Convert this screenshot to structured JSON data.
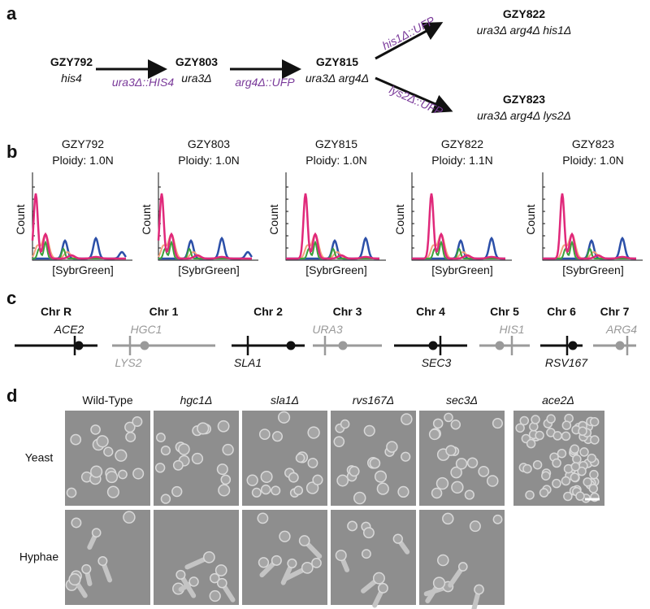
{
  "panels": {
    "a": {
      "label": "a",
      "strains": [
        {
          "name": "GZY792",
          "genotype": "his4"
        },
        {
          "name": "GZY803",
          "genotype": "ura3Δ"
        },
        {
          "name": "GZY815",
          "genotype": "ura3Δ arg4Δ"
        },
        {
          "name": "GZY822",
          "genotype": "ura3Δ arg4Δ his1Δ"
        },
        {
          "name": "GZY823",
          "genotype": "ura3Δ arg4Δ lys2Δ"
        }
      ],
      "arrows": [
        "ura3Δ::HIS4",
        "arg4Δ::UFP",
        "his1Δ::UFP",
        "lys2Δ::UFP"
      ]
    },
    "b": {
      "label": "b",
      "y_label": "Count",
      "x_label": "[SybrGreen]",
      "plots": [
        {
          "title": "GZY792",
          "ploidy": "Ploidy: 1.0N"
        },
        {
          "title": "GZY803",
          "ploidy": "Ploidy: 1.0N"
        },
        {
          "title": "GZY815",
          "ploidy": "Ploidy: 1.0N"
        },
        {
          "title": "GZY822",
          "ploidy": "Ploidy: 1.1N"
        },
        {
          "title": "GZY823",
          "ploidy": "Ploidy: 1.0N"
        }
      ]
    },
    "c": {
      "label": "c",
      "chromosomes": [
        {
          "name": "Chr R",
          "genes": [
            "ACE2"
          ]
        },
        {
          "name": "Chr 1",
          "genes": [
            "HGC1",
            "LYS2"
          ]
        },
        {
          "name": "Chr 2",
          "genes": [
            "SLA1"
          ]
        },
        {
          "name": "Chr 3",
          "genes": [
            "URA3"
          ]
        },
        {
          "name": "Chr 4",
          "genes": [
            "SEC3"
          ]
        },
        {
          "name": "Chr 5",
          "genes": [
            "HIS1"
          ]
        },
        {
          "name": "Chr 6",
          "genes": [
            "RSV167"
          ]
        },
        {
          "name": "Chr 7",
          "genes": [
            "ARG4"
          ]
        }
      ]
    },
    "d": {
      "label": "d",
      "columns": [
        "Wild-Type",
        "hgc1Δ",
        "sla1Δ",
        "rvs167Δ",
        "sec3Δ",
        "ace2Δ"
      ],
      "rows": [
        "Yeast",
        "Hyphae"
      ]
    }
  }
}
